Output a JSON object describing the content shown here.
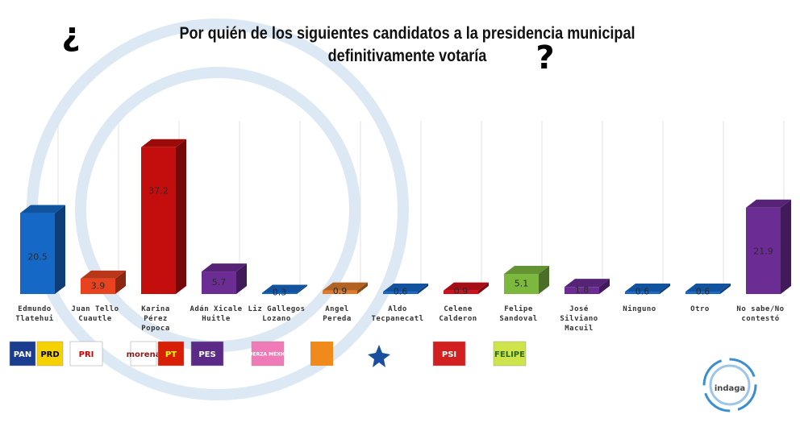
{
  "chart_data": {
    "type": "bar3d",
    "title": "Por quién de los siguientes candidatos a la presidencia municipal\ndefinitivamente votaría",
    "title_marks": [
      "¿",
      "?"
    ],
    "categories": [
      "Edmundo\nTlatehui",
      "Juan Tello\nCuautle",
      "Karina\nPérez\nPopoca",
      "Adán Xicale\nHuitle",
      "Liz Gallegos\nLozano",
      "Angel\nPereda",
      "Aldo\nTecpanecatl",
      "Celene\nCalderon",
      "Felipe\nSandoval",
      "José\nSilviano\nMacuil",
      "Ninguno",
      "Otro",
      "No sabe/No\ncontestó"
    ],
    "values": [
      20.5,
      3.9,
      37.2,
      5.7,
      0.3,
      0.9,
      0.6,
      0.9,
      5.1,
      1.8,
      0.6,
      0.6,
      21.9
    ],
    "colors": [
      "#1668c7",
      "#e8431e",
      "#c40d0d",
      "#6b2c94",
      "#1668c7",
      "#e07b2a",
      "#1668c7",
      "#d0101a",
      "#7cb83e",
      "#6b2c94",
      "#1668c7",
      "#1668c7",
      "#6b2c94"
    ],
    "ylim": [
      0,
      40
    ],
    "logos": [
      [
        "PAN",
        "PRD"
      ],
      [
        "PRI"
      ],
      [
        "morena",
        "PT"
      ],
      [
        "PES"
      ],
      [
        "FUERZA MÉXICO"
      ],
      [
        "PSI"
      ],
      [
        "FELIPE"
      ]
    ],
    "brand": "indaga"
  }
}
